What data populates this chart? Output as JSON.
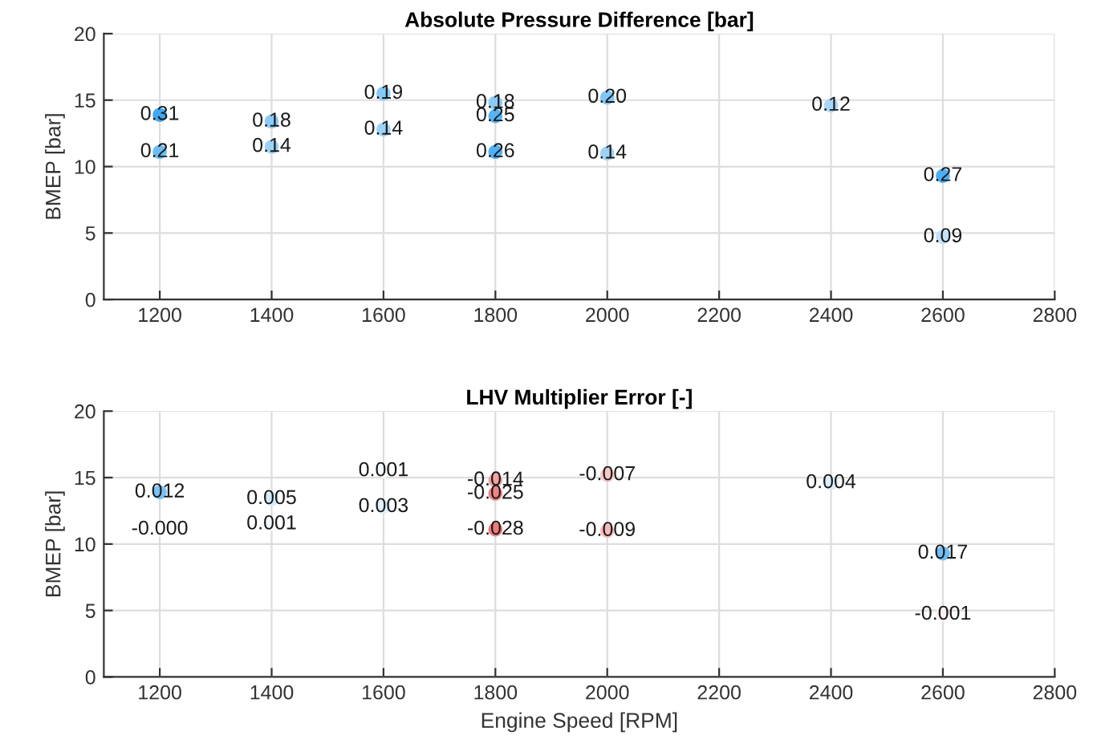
{
  "chart_data": [
    {
      "type": "scatter",
      "title": "Absolute Pressure Difference [bar]",
      "ylabel": "BMEP [bar]",
      "x": [
        1200,
        1200,
        1400,
        1400,
        1600,
        1600,
        1800,
        1800,
        1800,
        2000,
        2000,
        2400,
        2600,
        2600
      ],
      "values": [
        13.9,
        11.1,
        13.4,
        11.5,
        15.5,
        12.8,
        14.8,
        13.8,
        11.1,
        15.2,
        11.0,
        14.6,
        9.3,
        4.7
      ],
      "annotations": [
        {
          "text": "0.31",
          "x": 1200,
          "y": 13.9
        },
        {
          "text": "0.21",
          "x": 1200,
          "y": 11.1
        },
        {
          "text": "0.18",
          "x": 1400,
          "y": 13.4
        },
        {
          "text": "0.14",
          "x": 1400,
          "y": 11.5
        },
        {
          "text": "0.19",
          "x": 1600,
          "y": 15.5
        },
        {
          "text": "0.14",
          "x": 1600,
          "y": 12.8
        },
        {
          "text": "0.18",
          "x": 1800,
          "y": 14.8
        },
        {
          "text": "0.25",
          "x": 1800,
          "y": 13.8
        },
        {
          "text": "0.26",
          "x": 1800,
          "y": 11.1
        },
        {
          "text": "0.20",
          "x": 2000,
          "y": 15.2
        },
        {
          "text": "0.14",
          "x": 2000,
          "y": 11.0
        },
        {
          "text": "0.12",
          "x": 2400,
          "y": 14.6
        },
        {
          "text": "0.27",
          "x": 2600,
          "y": 9.3
        },
        {
          "text": "0.09",
          "x": 2600,
          "y": 4.7
        }
      ],
      "colors": [
        "#3fa9f5",
        "#6cbdf5",
        "#8ccbf6",
        "#9ed3f7",
        "#88c9f6",
        "#9ed3f7",
        "#8ccbf6",
        "#56b2f5",
        "#50b0f5",
        "#80c6f6",
        "#9ed3f7",
        "#a8d7f8",
        "#4cafF5",
        "#c2e2f9"
      ],
      "xlim": [
        1100,
        2800
      ],
      "xticks": [
        1200,
        1400,
        1600,
        1800,
        2000,
        2200,
        2400,
        2600,
        2800
      ],
      "ylim": [
        0,
        20
      ],
      "yticks": [
        0,
        5,
        10,
        15,
        20
      ],
      "grid": true,
      "marker": "circle"
    },
    {
      "type": "scatter",
      "title": "LHV Multiplier Error [-]",
      "xlabel": "Engine Speed [RPM]",
      "ylabel": "BMEP [bar]",
      "x": [
        1200,
        1200,
        1400,
        1400,
        1600,
        1600,
        1800,
        1800,
        1800,
        2000,
        2000,
        2400,
        2600,
        2600
      ],
      "values": [
        13.9,
        11.1,
        13.4,
        11.5,
        15.5,
        12.8,
        14.8,
        13.8,
        11.1,
        15.2,
        11.0,
        14.6,
        9.3,
        4.7
      ],
      "annotations": [
        {
          "text": "0.012",
          "x": 1200,
          "y": 13.9
        },
        {
          "text": "-0.000",
          "x": 1200,
          "y": 11.1
        },
        {
          "text": "0.005",
          "x": 1400,
          "y": 13.4
        },
        {
          "text": "0.001",
          "x": 1400,
          "y": 11.5
        },
        {
          "text": "0.001",
          "x": 1600,
          "y": 15.5
        },
        {
          "text": "0.003",
          "x": 1600,
          "y": 12.8
        },
        {
          "text": "-0.014",
          "x": 1800,
          "y": 14.8
        },
        {
          "text": "-0.025",
          "x": 1800,
          "y": 13.8
        },
        {
          "text": "-0.028",
          "x": 1800,
          "y": 11.1
        },
        {
          "text": "-0.007",
          "x": 2000,
          "y": 15.2
        },
        {
          "text": "-0.009",
          "x": 2000,
          "y": 11.0
        },
        {
          "text": "0.004",
          "x": 2400,
          "y": 14.6
        },
        {
          "text": "0.017",
          "x": 2600,
          "y": 9.3
        },
        {
          "text": "-0.001",
          "x": 2600,
          "y": 4.7
        }
      ],
      "colors": [
        "#7cc3f3",
        "#ffffff",
        "#d2eafb",
        "#f3f9fe",
        "#f3f9fe",
        "#e0f0fc",
        "#f2a3a3",
        "#ee8585",
        "#ec7c7c",
        "#f7c7c7",
        "#f5baba",
        "#dbeefb",
        "#6ebdf5",
        "#fdf0f0"
      ],
      "xlim": [
        1100,
        2800
      ],
      "xticks": [
        1200,
        1400,
        1600,
        1800,
        2000,
        2200,
        2400,
        2600,
        2800
      ],
      "ylim": [
        0,
        20
      ],
      "yticks": [
        0,
        5,
        10,
        15,
        20
      ],
      "grid": true,
      "marker": "circle"
    }
  ]
}
